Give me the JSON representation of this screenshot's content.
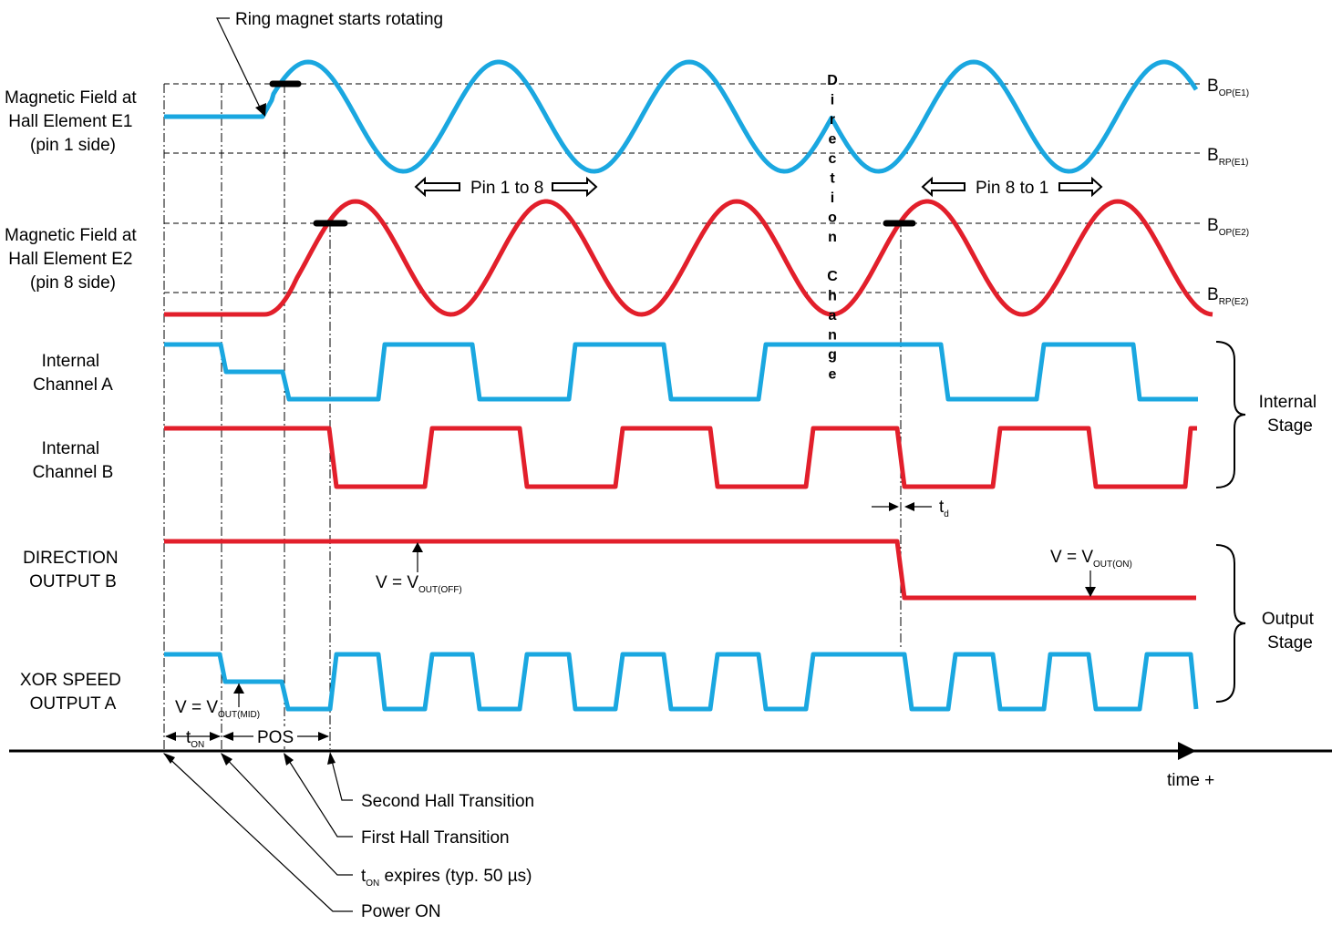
{
  "colors": {
    "channel_a": "#1aa7e0",
    "channel_b": "#e21f2b",
    "line": "#000000"
  },
  "signals": {
    "e1": [
      "Magnetic Field at",
      "Hall Element E1",
      "(pin 1 side)"
    ],
    "e2": [
      "Magnetic Field at",
      "Hall Element E2",
      "(pin 8 side)"
    ],
    "chA": [
      "Internal",
      "Channel A"
    ],
    "chB": [
      "Internal",
      "Channel B"
    ],
    "dir": [
      "DIRECTION",
      "OUTPUT B"
    ],
    "xor": [
      "XOR SPEED",
      "OUTPUT A"
    ]
  },
  "thresholds": {
    "bop_e1": {
      "main": "B",
      "sub": "OP(E1)"
    },
    "brp_e1": {
      "main": "B",
      "sub": "RP(E1)"
    },
    "bop_e2": {
      "main": "B",
      "sub": "OP(E2)"
    },
    "brp_e2": {
      "main": "B",
      "sub": "RP(E2)"
    }
  },
  "annotations": {
    "ring": "Ring magnet starts rotating",
    "pin1to8": "Pin 1 to 8",
    "pin8to1": "Pin 8 to 1",
    "direction_change_letters": [
      "D",
      "i",
      "r",
      "e",
      "c",
      "t",
      "i",
      "o",
      "n",
      "",
      "C",
      "h",
      "a",
      "n",
      "g",
      "e"
    ],
    "td": {
      "main": "t",
      "sub": "d"
    },
    "vout_off": {
      "main": "V = V",
      "sub": "OUT(OFF)"
    },
    "vout_on": {
      "main": "V = V",
      "sub": "OUT(ON)"
    },
    "vout_mid": {
      "main": "V = V",
      "sub": "OUT(MID)"
    },
    "ton": {
      "main": "t",
      "sub": "ON"
    },
    "pos": "POS",
    "time": "time +"
  },
  "stages": {
    "internal": [
      "Internal",
      "Stage"
    ],
    "output": [
      "Output",
      "Stage"
    ]
  },
  "callouts": {
    "second": "Second Hall Transition",
    "first": "First Hall Transition",
    "ton_expires": {
      "main": "t",
      "sub": "ON",
      "rest": " expires (typ. 50 µs)"
    },
    "power_on": "Power ON"
  }
}
